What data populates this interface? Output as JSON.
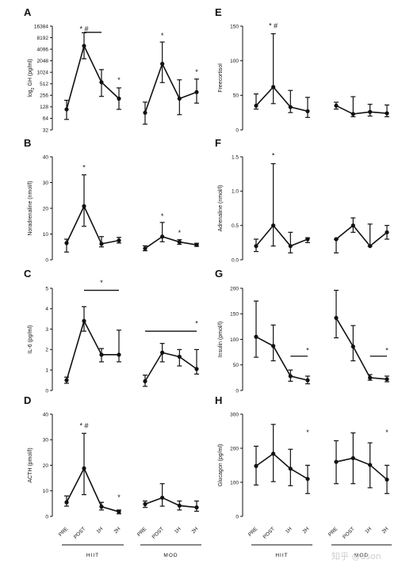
{
  "watermark": "知乎 @ason",
  "tick_labels": [
    "PRE",
    "POST",
    "1H",
    "2H"
  ],
  "groups": [
    "HIIT",
    "MOD"
  ],
  "chart_data": [
    {
      "panel": "A",
      "type": "line",
      "col": 0,
      "row": 0,
      "ylabel": "log2 GH (pg/ml)",
      "ylabel_sub": "2",
      "yscale": "log2",
      "ylim": [
        32,
        16384
      ],
      "yticks": [
        32,
        64,
        128,
        256,
        512,
        1024,
        2048,
        4096,
        8192,
        16384
      ],
      "series": [
        {
          "name": "HIIT",
          "x": [
            "PRE",
            "POST",
            "1H",
            "2H"
          ],
          "values": [
            110,
            5000,
            560,
            210
          ],
          "lower": [
            60,
            2300,
            240,
            110
          ],
          "upper": [
            190,
            11000,
            1200,
            400
          ]
        },
        {
          "name": "MOD",
          "x": [
            "PRE",
            "POST",
            "1H",
            "2H"
          ],
          "values": [
            90,
            1700,
            210,
            310
          ],
          "lower": [
            45,
            550,
            80,
            160
          ],
          "upper": [
            170,
            6300,
            650,
            680
          ]
        }
      ],
      "annotations": [
        {
          "text": "* #",
          "x": "POST",
          "group": "HIIT",
          "y": 12000
        },
        {
          "bar": true,
          "group": "HIIT",
          "from": "POST",
          "to": "1H",
          "y": 11300
        },
        {
          "text": "*",
          "x": "2H",
          "group": "HIIT",
          "y": 560
        },
        {
          "text": "*",
          "x": "POST",
          "group": "MOD",
          "y": 8000
        },
        {
          "text": "*",
          "x": "2H",
          "group": "MOD",
          "y": 900
        }
      ]
    },
    {
      "panel": "B",
      "type": "line",
      "col": 0,
      "row": 1,
      "ylabel": "Noradrenaline (nmol/l)",
      "yscale": "linear",
      "ylim": [
        0,
        40
      ],
      "yticks": [
        0,
        10,
        20,
        30,
        40
      ],
      "series": [
        {
          "name": "HIIT",
          "x": [
            "PRE",
            "POST",
            "1H",
            "2H"
          ],
          "values": [
            6.5,
            20.8,
            6.2,
            7.5
          ],
          "lower": [
            3,
            13,
            5,
            6.5
          ],
          "upper": [
            8,
            33,
            9,
            8.7
          ]
        },
        {
          "name": "MOD",
          "x": [
            "PRE",
            "POST",
            "1H",
            "2H"
          ],
          "values": [
            4.4,
            9,
            6.9,
            5.8
          ],
          "lower": [
            3.5,
            7,
            6,
            5.2
          ],
          "upper": [
            5.4,
            14.5,
            7.8,
            6.4
          ]
        }
      ],
      "annotations": [
        {
          "text": "*",
          "x": "POST",
          "group": "HIIT",
          "y": 35
        },
        {
          "text": "*",
          "x": "POST",
          "group": "MOD",
          "y": 16
        },
        {
          "text": "*",
          "x": "1H",
          "group": "MOD",
          "y": 9.5
        }
      ]
    },
    {
      "panel": "C",
      "type": "line",
      "col": 0,
      "row": 2,
      "ylabel": "IL-6 (pg/ml)",
      "yscale": "linear",
      "ylim": [
        0,
        5
      ],
      "yticks": [
        0,
        1,
        2,
        3,
        4,
        5
      ],
      "series": [
        {
          "name": "HIIT",
          "x": [
            "PRE",
            "POST",
            "1H",
            "2H"
          ],
          "values": [
            0.5,
            3.4,
            1.75,
            1.75
          ],
          "lower": [
            0.35,
            2.9,
            1.4,
            1.4
          ],
          "upper": [
            0.65,
            4.1,
            2.05,
            2.95
          ]
        },
        {
          "name": "MOD",
          "x": [
            "PRE",
            "POST",
            "1H",
            "2H"
          ],
          "values": [
            0.45,
            1.85,
            1.65,
            1.05
          ],
          "lower": [
            0.2,
            1.4,
            1.2,
            0.8
          ],
          "upper": [
            0.75,
            2.3,
            2.0,
            2.0
          ]
        }
      ],
      "annotations": [
        {
          "bar": true,
          "group": "HIIT",
          "from": "POST",
          "to": "2H",
          "y": 4.9
        },
        {
          "text": "*",
          "x": "1H",
          "group": "HIIT",
          "y": 5.15
        },
        {
          "bar": true,
          "group": "MOD",
          "from": "PRE",
          "to": "2H",
          "y": 2.9
        },
        {
          "text": "*",
          "x": "2H",
          "group": "MOD",
          "y": 3.15
        }
      ]
    },
    {
      "panel": "D",
      "type": "line",
      "col": 0,
      "row": 3,
      "ylabel": "ACTH (pmol/l)",
      "yscale": "linear",
      "ylim": [
        0,
        40
      ],
      "yticks": [
        0,
        10,
        20,
        30,
        40
      ],
      "series": [
        {
          "name": "HIIT",
          "x": [
            "PRE",
            "POST",
            "1H",
            "2H"
          ],
          "values": [
            5.5,
            18.8,
            3.8,
            1.8
          ],
          "lower": [
            4,
            8.5,
            2.5,
            1
          ],
          "upper": [
            8,
            32.5,
            5.5,
            2.5
          ]
        },
        {
          "name": "MOD",
          "x": [
            "PRE",
            "POST",
            "1H",
            "2H"
          ],
          "values": [
            4.8,
            7.3,
            4.2,
            3.5
          ],
          "lower": [
            3.5,
            4,
            2.5,
            2
          ],
          "upper": [
            6,
            12.8,
            6,
            6
          ]
        }
      ],
      "annotations": [
        {
          "text": "* #",
          "x": "POST",
          "group": "HIIT",
          "y": 34.5
        },
        {
          "text": "*",
          "x": "2H",
          "group": "HIIT",
          "y": 6.5
        }
      ]
    },
    {
      "panel": "E",
      "type": "line",
      "col": 1,
      "row": 0,
      "ylabel": "Freecortisol",
      "yscale": "linear",
      "ylim": [
        0,
        150
      ],
      "yticks": [
        0,
        50,
        100,
        150
      ],
      "series": [
        {
          "name": "HIIT",
          "x": [
            "PRE",
            "POST",
            "1H",
            "2H"
          ],
          "values": [
            35,
            62,
            33,
            27
          ],
          "lower": [
            30,
            38,
            25,
            18
          ],
          "upper": [
            52,
            139,
            57,
            47
          ]
        },
        {
          "name": "MOD",
          "x": [
            "PRE",
            "POST",
            "1H",
            "2H"
          ],
          "values": [
            35,
            23,
            26,
            24
          ],
          "lower": [
            30,
            19,
            20,
            19
          ],
          "upper": [
            40,
            48,
            37,
            36
          ]
        }
      ],
      "annotations": [
        {
          "text": "* #",
          "x": "POST",
          "group": "HIIT",
          "y": 147
        }
      ]
    },
    {
      "panel": "F",
      "type": "line",
      "col": 1,
      "row": 1,
      "ylabel": "Adrenaline (nmol/l)",
      "yscale": "linear",
      "ylim": [
        0,
        1.5
      ],
      "yticks": [
        0,
        0.5,
        1.0,
        1.5
      ],
      "yticklabels": [
        "0.0",
        "0.5",
        "1.0",
        "1.5"
      ],
      "series": [
        {
          "name": "HIIT",
          "x": [
            "PRE",
            "POST",
            "1H",
            "2H"
          ],
          "values": [
            0.2,
            0.5,
            0.2,
            0.3
          ],
          "lower": [
            0.12,
            0.2,
            0.1,
            0.25
          ],
          "upper": [
            0.3,
            1.4,
            0.4,
            0.32
          ]
        },
        {
          "name": "MOD",
          "x": [
            "PRE",
            "POST",
            "1H",
            "2H"
          ],
          "values": [
            0.3,
            0.5,
            0.2,
            0.4
          ],
          "lower": [
            0.1,
            0.4,
            0.2,
            0.3
          ],
          "upper": [
            0.3,
            0.61,
            0.52,
            0.5
          ]
        }
      ],
      "annotations": [
        {
          "text": "*",
          "x": "POST",
          "group": "HIIT",
          "y": 1.48
        }
      ]
    },
    {
      "panel": "G",
      "type": "line",
      "col": 1,
      "row": 2,
      "ylabel": "Insulin (pmol/l)",
      "yscale": "linear",
      "ylim": [
        0,
        200
      ],
      "yticks": [
        0,
        50,
        100,
        150,
        200
      ],
      "series": [
        {
          "name": "HIIT",
          "x": [
            "PRE",
            "POST",
            "1H",
            "2H"
          ],
          "values": [
            105,
            87,
            28,
            20
          ],
          "lower": [
            65,
            58,
            18,
            13
          ],
          "upper": [
            175,
            128,
            40,
            28
          ]
        },
        {
          "name": "MOD",
          "x": [
            "PRE",
            "POST",
            "1H",
            "2H"
          ],
          "values": [
            142,
            86,
            25,
            22
          ],
          "lower": [
            103,
            58,
            20,
            17
          ],
          "upper": [
            196,
            127,
            31,
            28
          ]
        }
      ],
      "annotations": [
        {
          "bar": true,
          "group": "HIIT",
          "from": "1H",
          "to": "2H",
          "y": 67
        },
        {
          "text": "*",
          "x": "2H",
          "group": "HIIT",
          "y": 74
        },
        {
          "bar": true,
          "group": "MOD",
          "from": "1H",
          "to": "2H",
          "y": 67
        },
        {
          "text": "*",
          "x": "2H",
          "group": "MOD",
          "y": 74
        }
      ]
    },
    {
      "panel": "H",
      "type": "line",
      "col": 1,
      "row": 3,
      "ylabel": "Glucagon (pg/ml)",
      "yscale": "linear",
      "ylim": [
        0,
        300
      ],
      "yticks": [
        0,
        100,
        200,
        300
      ],
      "series": [
        {
          "name": "HIIT",
          "x": [
            "PRE",
            "POST",
            "1H",
            "2H"
          ],
          "values": [
            148,
            184,
            140,
            110
          ],
          "lower": [
            92,
            102,
            90,
            67
          ],
          "upper": [
            206,
            270,
            197,
            150
          ]
        },
        {
          "name": "MOD",
          "x": [
            "PRE",
            "POST",
            "1H",
            "2H"
          ],
          "values": [
            160,
            171,
            151,
            108
          ],
          "lower": [
            96,
            96,
            84,
            67
          ],
          "upper": [
            222,
            245,
            216,
            150
          ]
        }
      ],
      "annotations": [
        {
          "text": "*",
          "x": "2H",
          "group": "HIIT",
          "y": 240
        },
        {
          "text": "*",
          "x": "2H",
          "group": "MOD",
          "y": 240
        }
      ]
    }
  ]
}
